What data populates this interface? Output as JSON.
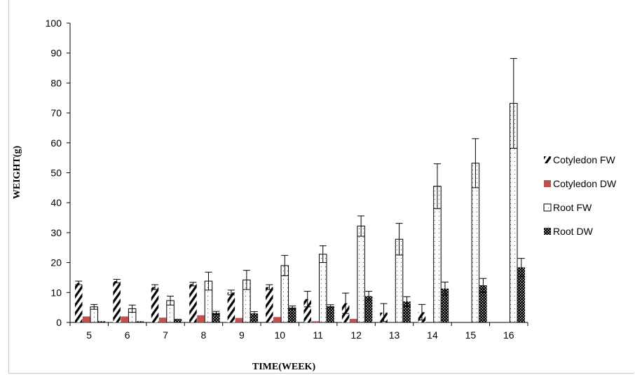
{
  "chart_data": {
    "type": "bar",
    "title": "",
    "xlabel": "TIME(WEEK)",
    "ylabel": "WEIGHT(g)",
    "ylim": [
      0,
      100
    ],
    "yticks": [
      0,
      10,
      20,
      30,
      40,
      50,
      60,
      70,
      80,
      90,
      100
    ],
    "categories": [
      "5",
      "6",
      "7",
      "8",
      "9",
      "10",
      "11",
      "12",
      "13",
      "14",
      "15",
      "16"
    ],
    "legend_position": "right",
    "grid": false,
    "series": [
      {
        "name": "Cotyledon FW",
        "pattern": "diagonal-hatch",
        "color": "#000000",
        "values": [
          13.2,
          13.8,
          11.8,
          12.8,
          10.0,
          11.8,
          7.8,
          6.4,
          3.3,
          3.4,
          0,
          0
        ],
        "errors": [
          0.6,
          0.6,
          0.8,
          0.6,
          0.8,
          0.8,
          2.6,
          3.4,
          3.0,
          2.6,
          0,
          0
        ]
      },
      {
        "name": "Cotyledon DW",
        "pattern": "solid",
        "color": "#c0504d",
        "values": [
          2.0,
          2.0,
          1.6,
          2.4,
          1.5,
          1.8,
          0.4,
          1.2,
          0,
          0,
          0,
          0
        ],
        "errors": [
          0,
          0,
          0,
          0,
          0,
          0,
          0,
          0,
          0,
          0,
          0,
          0
        ]
      },
      {
        "name": "Root FW",
        "pattern": "dotted",
        "color": "#000000",
        "values": [
          5.2,
          4.6,
          7.3,
          13.8,
          14.2,
          19.0,
          22.8,
          32.2,
          27.8,
          45.5,
          53.2,
          73.2
        ],
        "errors": [
          0.8,
          1.2,
          1.5,
          3.0,
          3.2,
          3.4,
          2.8,
          3.4,
          5.3,
          7.5,
          8.2,
          15.0
        ]
      },
      {
        "name": "Root DW",
        "pattern": "checker",
        "color": "#000000",
        "values": [
          0.4,
          0.4,
          1.2,
          3.2,
          3.0,
          5.0,
          5.4,
          8.8,
          7.0,
          11.3,
          12.4,
          18.4
        ],
        "errors": [
          0,
          0,
          0,
          0.5,
          0.6,
          0.5,
          0.5,
          1.6,
          1.6,
          2.2,
          2.3,
          3.0
        ]
      }
    ]
  }
}
